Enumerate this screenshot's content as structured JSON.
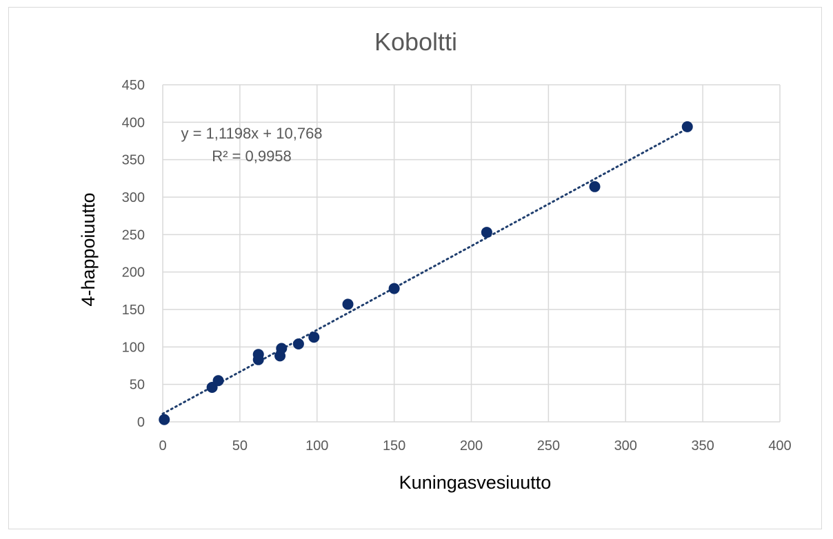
{
  "chart_data": {
    "type": "scatter",
    "title": "Koboltti",
    "xlabel": "Kuningasvesiuutto",
    "ylabel": "4-happoiuutto",
    "xlim": [
      0,
      400
    ],
    "ylim": [
      0,
      450
    ],
    "xticks": [
      0,
      50,
      100,
      150,
      200,
      250,
      300,
      350,
      400
    ],
    "yticks": [
      0,
      50,
      100,
      150,
      200,
      250,
      300,
      350,
      400,
      450
    ],
    "grid": true,
    "legend": "none",
    "point_color": "#0d2d6b",
    "trendline_color": "#1f3e6e",
    "series": [
      {
        "x": [
          1,
          32,
          36,
          62,
          62,
          76,
          77,
          88,
          98,
          120,
          150,
          210,
          280,
          340
        ],
        "y": [
          3,
          46,
          55,
          90,
          83,
          88,
          98,
          104,
          113,
          157,
          178,
          253,
          314,
          394
        ]
      }
    ],
    "trendline": {
      "slope": 1.1198,
      "intercept": 10.768,
      "equation": "y = 1,1198x + 10,768",
      "r2": "R² = 0,9958"
    }
  }
}
